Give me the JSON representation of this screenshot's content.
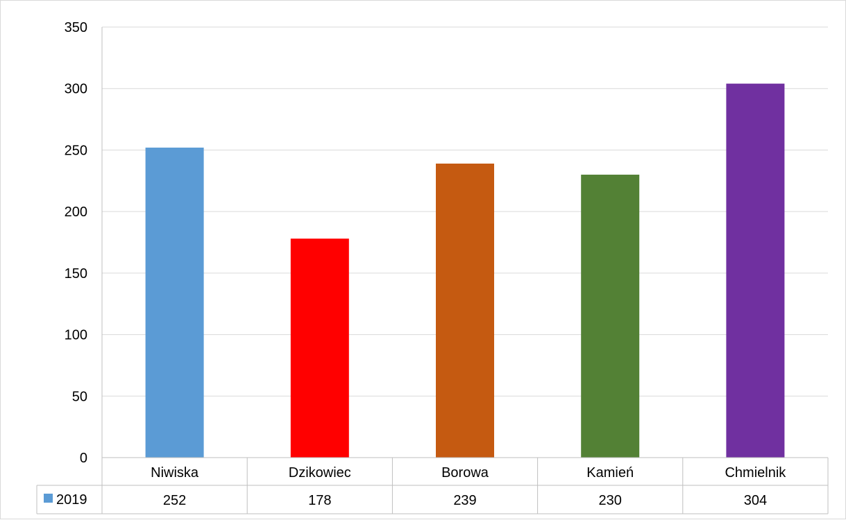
{
  "chart_data": {
    "type": "bar",
    "categories": [
      "Niwiska",
      "Dzikowiec",
      "Borowa",
      "Kamień",
      "Chmielnik"
    ],
    "series": [
      {
        "name": "2019",
        "values": [
          252,
          178,
          239,
          230,
          304
        ],
        "value_labels": [
          "252",
          "178",
          "239",
          "230",
          "304"
        ],
        "colors": [
          "#5b9bd5",
          "#ff0000",
          "#c55a11",
          "#538135",
          "#7030a0"
        ]
      }
    ],
    "legend_color": "#5b9bd5",
    "ylim": [
      0,
      350
    ],
    "yticks": [
      "0",
      "50",
      "100",
      "150",
      "200",
      "250",
      "300",
      "350"
    ],
    "ytick_values": [
      0,
      50,
      100,
      150,
      200,
      250,
      300,
      350
    ],
    "grid": true,
    "data_table": true,
    "legend_placement": "data-table"
  }
}
